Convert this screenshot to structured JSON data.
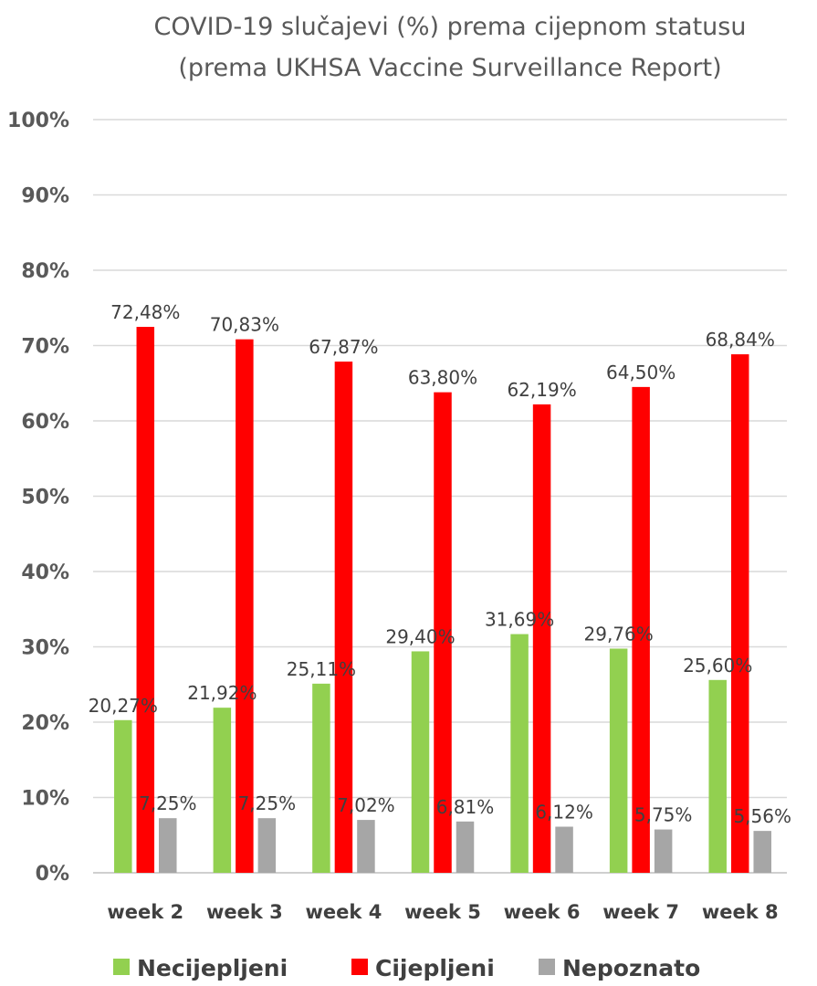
{
  "chart_data": {
    "type": "bar",
    "title_lines": [
      "COVID-19 slučajevi (%) prema cijepnom statusu",
      "(prema UKHSA Vaccine Surveillance Report)"
    ],
    "categories": [
      "week 2",
      "week 3",
      "week 4",
      "week 5",
      "week 6",
      "week 7",
      "week 8"
    ],
    "series": [
      {
        "name": "Necijepljeni",
        "color": "#92d050",
        "values": [
          20.27,
          21.92,
          25.11,
          29.4,
          31.69,
          29.76,
          25.6
        ],
        "labels": [
          "20,27%",
          "21,92%",
          "25,11%",
          "29,40%",
          "31,69%",
          "29,76%",
          "25,60%"
        ]
      },
      {
        "name": "Cijepljeni",
        "color": "#ff0000",
        "values": [
          72.48,
          70.83,
          67.87,
          63.8,
          62.19,
          64.5,
          68.84
        ],
        "labels": [
          "72,48%",
          "70,83%",
          "67,87%",
          "63,80%",
          "62,19%",
          "64,50%",
          "68,84%"
        ]
      },
      {
        "name": "Nepoznato",
        "color": "#a6a6a6",
        "values": [
          7.25,
          7.25,
          7.02,
          6.81,
          6.12,
          5.75,
          5.56
        ],
        "labels": [
          "7,25%",
          "7,25%",
          "7,02%",
          "6,81%",
          "6,12%",
          "5,75%",
          "5,56%"
        ]
      }
    ],
    "ylim": [
      0,
      100
    ],
    "yticks": [
      0,
      10,
      20,
      30,
      40,
      50,
      60,
      70,
      80,
      90,
      100
    ],
    "ytick_labels": [
      "0%",
      "10%",
      "20%",
      "30%",
      "40%",
      "50%",
      "60%",
      "70%",
      "80%",
      "90%",
      "100%"
    ],
    "grid": true,
    "legend_position": "bottom"
  }
}
